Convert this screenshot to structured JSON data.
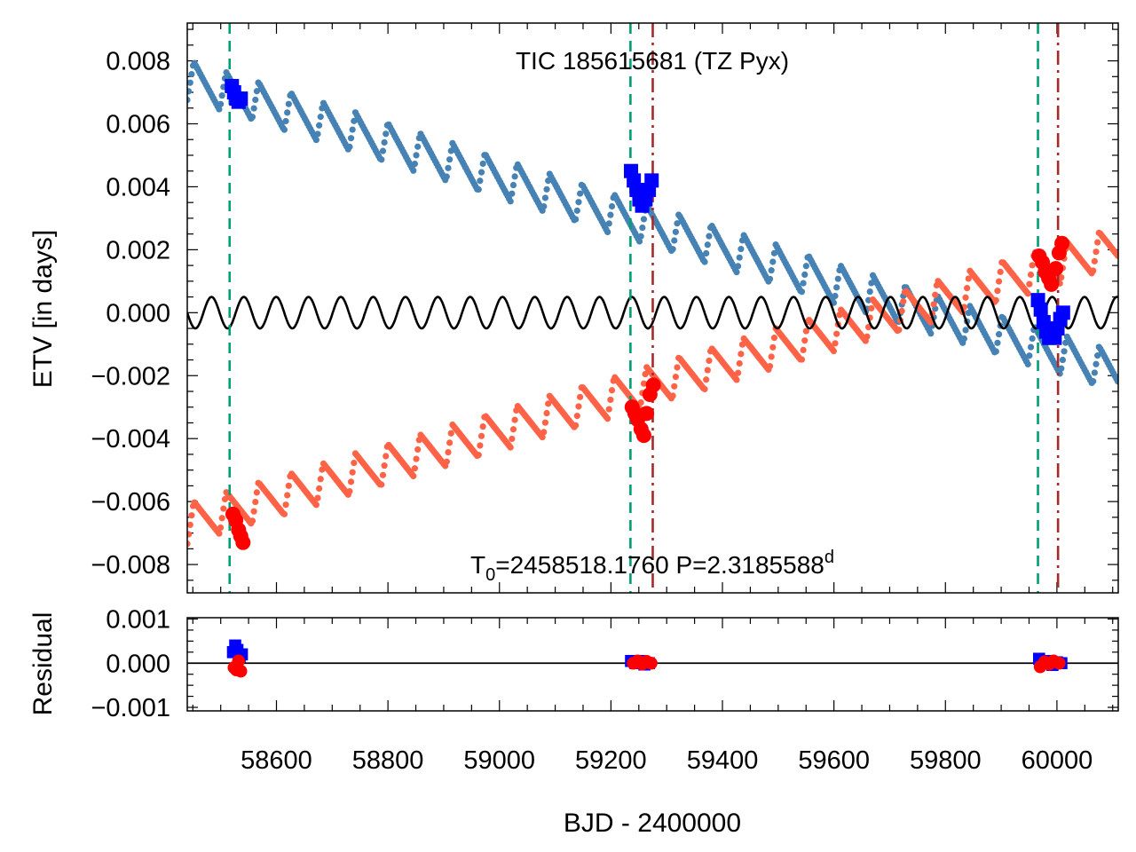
{
  "chart_data": [
    {
      "type": "scatter",
      "panel": "top",
      "title": "TIC 185615681 (TZ Pyx)",
      "xlabel": "",
      "ylabel": "ETV [in days]",
      "xlim": [
        58440,
        60110
      ],
      "ylim": [
        -0.0089,
        0.0092
      ],
      "yticks": [
        0.008,
        0.006,
        0.004,
        0.002,
        0.0,
        -0.002,
        -0.004,
        -0.006,
        -0.008
      ],
      "ytick_labels": [
        "0.008",
        "0.006",
        "0.004",
        "0.002",
        "0.000",
        "−0.002",
        "−0.004",
        "−0.006",
        "−0.008"
      ],
      "annotation": {
        "base": "T",
        "sub": "0",
        "text": "=2458518.1760 P=2.3185588",
        "sup": "d"
      },
      "model": {
        "period_days": 58,
        "primary": {
          "name": "primary ETV model",
          "color": "#4682b4",
          "start": 0.0074,
          "end": -0.0019,
          "amplitude": 0.0008
        },
        "secondary": {
          "name": "secondary ETV model",
          "color": "#ff6347",
          "start": -0.0067,
          "end": 0.0021,
          "amplitude": 0.0008
        },
        "ltte": {
          "name": "sinusoid term",
          "color": "#000000",
          "amplitude": 0.0005,
          "period_days": 58
        }
      },
      "series": [
        {
          "name": "primary observed",
          "marker": "square",
          "color": "#0000ff",
          "x": [
            58520,
            58524,
            58528,
            58532,
            58536,
            59236,
            59241,
            59246,
            59251,
            59256,
            59262,
            59268,
            59273,
            59966,
            59971,
            59976,
            59981,
            59986,
            59996,
            60001,
            60006,
            60011
          ],
          "y": [
            0.0072,
            0.007,
            0.0068,
            0.0067,
            0.0068,
            0.0045,
            0.0042,
            0.0039,
            0.0036,
            0.0034,
            0.0036,
            0.0039,
            0.0042,
            0.0004,
            0.0001,
            -0.0003,
            -0.0006,
            -0.0008,
            -0.0008,
            -0.0005,
            -0.0002,
            0.0
          ]
        },
        {
          "name": "secondary observed",
          "marker": "circle",
          "color": "#ff0000",
          "x": [
            58522,
            58527,
            58532,
            58536,
            58540,
            59238,
            59243,
            59248,
            59254,
            59259,
            59264,
            59270,
            59276,
            59968,
            59974,
            59979,
            59985,
            59990,
            59998,
            60004,
            60009
          ],
          "y": [
            -0.0064,
            -0.0066,
            -0.0069,
            -0.0071,
            -0.0073,
            -0.003,
            -0.0032,
            -0.0034,
            -0.0037,
            -0.0039,
            -0.0032,
            -0.0026,
            -0.0023,
            0.0018,
            0.0016,
            0.0013,
            0.0011,
            0.0009,
            0.0014,
            0.0019,
            0.0022
          ]
        }
      ],
      "vlines": [
        {
          "x": 58516,
          "style": "dashed",
          "color": "#009e73"
        },
        {
          "x": 59235,
          "style": "dashed",
          "color": "#009e73"
        },
        {
          "x": 59275,
          "style": "dashdot",
          "color": "#a52a2a"
        },
        {
          "x": 59966,
          "style": "dashed",
          "color": "#009e73"
        },
        {
          "x": 60002,
          "style": "dashdot",
          "color": "#a52a2a"
        }
      ]
    },
    {
      "type": "scatter",
      "panel": "bottom",
      "xlabel": "BJD - 2400000",
      "ylabel": "Residual",
      "xlim": [
        58440,
        60110
      ],
      "ylim": [
        -0.00108,
        0.00103
      ],
      "xticks": [
        58600,
        58800,
        59000,
        59200,
        59400,
        59600,
        59800,
        60000
      ],
      "xtick_labels": [
        "58600",
        "58800",
        "59000",
        "59200",
        "59400",
        "59600",
        "59800",
        "60000"
      ],
      "yticks": [
        0.001,
        0.0,
        -0.001
      ],
      "ytick_labels": [
        "0.001",
        "0.000",
        "−0.001"
      ],
      "series": [
        {
          "name": "primary residual",
          "marker": "square",
          "color": "#0000ff",
          "x": [
            58522,
            58526,
            58530,
            58534,
            58538,
            59236,
            59244,
            59252,
            59260,
            59268,
            59968,
            59976,
            59984,
            59992,
            60000,
            60008
          ],
          "y": [
            0.00025,
            0.0004,
            0.0003,
            0.00015,
            0.0002,
            5e-05,
            0.0,
            5e-05,
            -3e-05,
            0.0,
            0.0001,
            0.0,
            5e-05,
            -4e-05,
            2e-05,
            0.0
          ]
        },
        {
          "name": "secondary residual",
          "marker": "circle",
          "color": "#ff0000",
          "x": [
            58524,
            58528,
            58532,
            58536,
            59240,
            59248,
            59256,
            59264,
            59272,
            59970,
            59978,
            59986,
            59994,
            60004
          ],
          "y": [
            -0.0001,
            -0.00015,
            5e-05,
            -0.00018,
            0.0,
            5e-05,
            -2e-05,
            4e-05,
            0.0,
            -8e-05,
            3e-05,
            -2e-05,
            5e-05,
            0.0
          ]
        }
      ]
    }
  ]
}
